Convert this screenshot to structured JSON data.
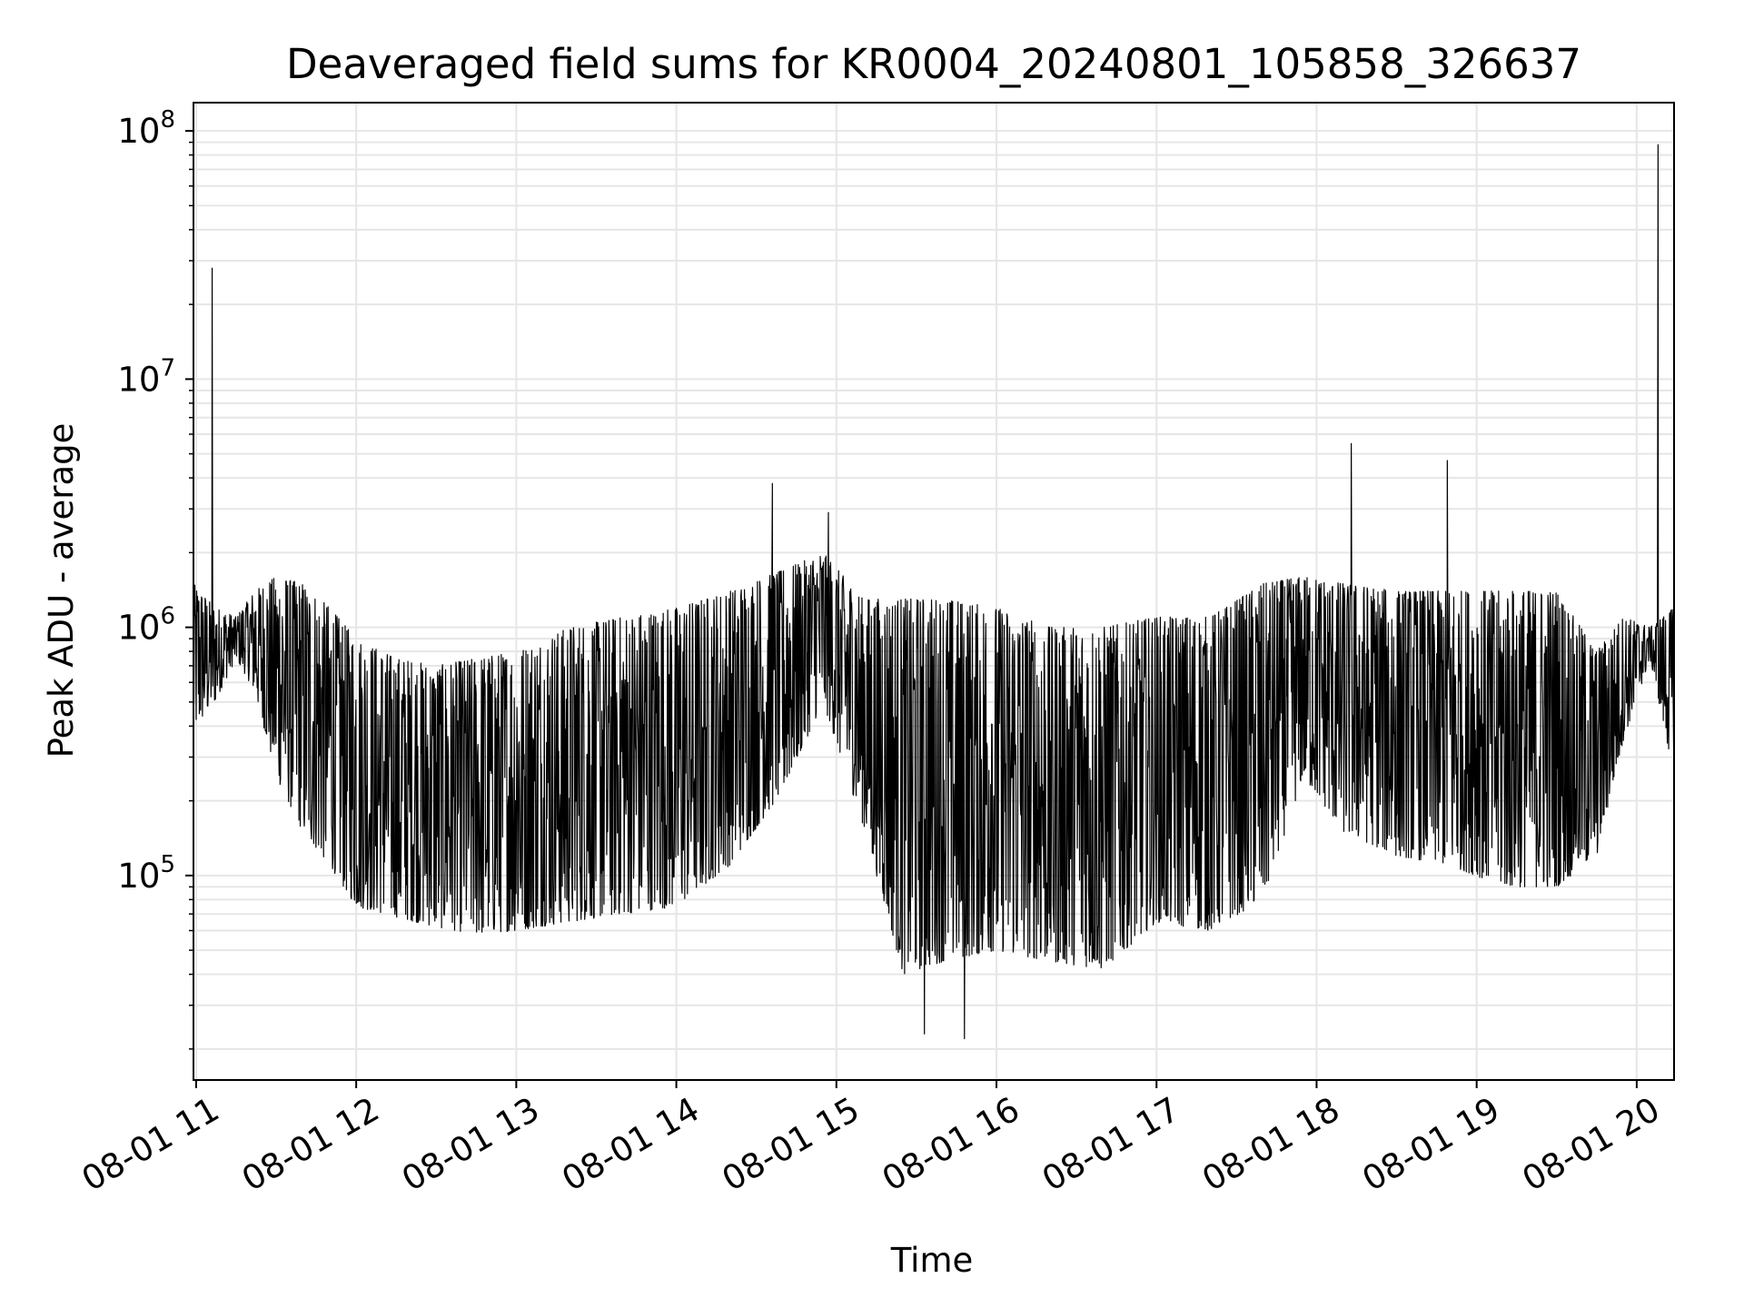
{
  "chart_data": {
    "type": "line",
    "title": "Deaveraged field sums for KR0004_20240801_105858_326637",
    "xlabel": "Time",
    "ylabel": "Peak ADU - average",
    "yscale": "log",
    "ylim": [
      15000,
      130000000
    ],
    "xlim": [
      "2024-08-01 10:59",
      "2024-08-01 20:14"
    ],
    "grid": true,
    "line_color": "#000000",
    "grid_color": "#e6e6e6",
    "x_ticks": [
      {
        "at": "2024-08-01 11:00",
        "label": "08-01 11"
      },
      {
        "at": "2024-08-01 12:00",
        "label": "08-01 12"
      },
      {
        "at": "2024-08-01 13:00",
        "label": "08-01 13"
      },
      {
        "at": "2024-08-01 14:00",
        "label": "08-01 14"
      },
      {
        "at": "2024-08-01 15:00",
        "label": "08-01 15"
      },
      {
        "at": "2024-08-01 16:00",
        "label": "08-01 16"
      },
      {
        "at": "2024-08-01 17:00",
        "label": "08-01 17"
      },
      {
        "at": "2024-08-01 18:00",
        "label": "08-01 18"
      },
      {
        "at": "2024-08-01 19:00",
        "label": "08-01 19"
      },
      {
        "at": "2024-08-01 20:00",
        "label": "08-01 20"
      }
    ],
    "y_ticks": [
      {
        "value": 100000,
        "base": "10",
        "exp": "5"
      },
      {
        "value": 1000000,
        "base": "10",
        "exp": "6"
      },
      {
        "value": 10000000,
        "base": "10",
        "exp": "7"
      },
      {
        "value": 100000000,
        "base": "10",
        "exp": "8"
      }
    ],
    "series": [
      {
        "x": [
          "2024-08-01 10:59",
          "2024-08-01 11:07",
          "2024-08-01 11:15",
          "2024-08-01 11:22",
          "2024-08-01 11:30",
          "2024-08-01 11:40",
          "2024-08-01 11:50",
          "2024-08-01 12:00",
          "2024-08-01 12:15",
          "2024-08-01 12:30",
          "2024-08-01 12:45",
          "2024-08-01 13:00",
          "2024-08-01 13:20",
          "2024-08-01 13:40",
          "2024-08-01 14:00",
          "2024-08-01 14:20",
          "2024-08-01 14:40",
          "2024-08-01 14:55",
          "2024-08-01 15:10",
          "2024-08-01 15:25",
          "2024-08-01 15:40",
          "2024-08-01 16:00",
          "2024-08-01 16:20",
          "2024-08-01 16:40",
          "2024-08-01 17:00",
          "2024-08-01 17:20",
          "2024-08-01 17:40",
          "2024-08-01 17:55",
          "2024-08-01 18:10",
          "2024-08-01 18:30",
          "2024-08-01 18:50",
          "2024-08-01 19:10",
          "2024-08-01 19:30",
          "2024-08-01 19:45",
          "2024-08-01 19:55",
          "2024-08-01 20:05",
          "2024-08-01 20:14"
        ],
        "low": [
          380000,
          500000,
          750000,
          550000,
          250000,
          150000,
          110000,
          75000,
          68000,
          62000,
          58000,
          60000,
          65000,
          70000,
          75000,
          110000,
          220000,
          500000,
          160000,
          40000,
          45000,
          50000,
          45000,
          42000,
          65000,
          60000,
          80000,
          250000,
          150000,
          120000,
          110000,
          90000,
          90000,
          120000,
          350000,
          750000,
          250000
        ],
        "high": [
          1500000,
          1200000,
          1100000,
          1400000,
          1600000,
          1500000,
          1200000,
          900000,
          750000,
          700000,
          750000,
          800000,
          1000000,
          1100000,
          1200000,
          1400000,
          1700000,
          2000000,
          1300000,
          1300000,
          1300000,
          1200000,
          1000000,
          1000000,
          1100000,
          1100000,
          1500000,
          1600000,
          1500000,
          1400000,
          1400000,
          1400000,
          1400000,
          800000,
          1100000,
          1000000,
          1200000
        ]
      }
    ],
    "spikes": [
      {
        "x": "2024-08-01 11:06",
        "y": 28000000
      },
      {
        "x": "2024-08-01 14:36",
        "y": 3800000
      },
      {
        "x": "2024-08-01 14:57",
        "y": 2900000
      },
      {
        "x": "2024-08-01 15:33",
        "y": 23000
      },
      {
        "x": "2024-08-01 15:48",
        "y": 22000
      },
      {
        "x": "2024-08-01 18:13",
        "y": 5500000
      },
      {
        "x": "2024-08-01 18:49",
        "y": 4700000
      },
      {
        "x": "2024-08-01 20:08",
        "y": 88000000
      }
    ]
  }
}
